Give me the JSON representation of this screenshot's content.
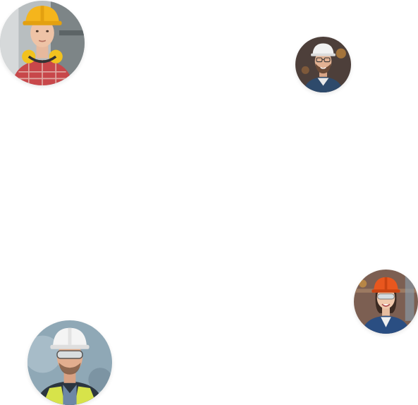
{
  "avatars": [
    {
      "icon": "worker-avatar-icon",
      "description_colors": {
        "helmet": "#F5B51C",
        "shirt": "#C8474A",
        "background": "#9aa3a6"
      }
    },
    {
      "icon": "worker-avatar-icon",
      "description_colors": {
        "helmet": "#F2F2F2",
        "shirt": "#2E4A6B",
        "background": "#5a4a44"
      }
    },
    {
      "icon": "worker-avatar-icon",
      "description_colors": {
        "helmet": "#E8571E",
        "shirt": "#2A4E82",
        "background": "#8a6a58"
      }
    },
    {
      "icon": "worker-avatar-icon",
      "description_colors": {
        "helmet": "#F4F4F4",
        "shirt": "#D7E34A",
        "background": "#7f98a8"
      }
    }
  ]
}
